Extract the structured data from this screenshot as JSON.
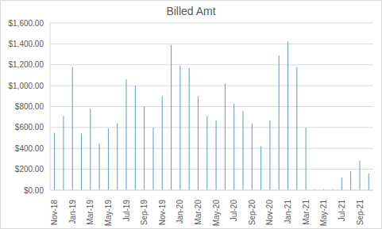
{
  "chart_data": {
    "type": "bar",
    "title": "Billed Amt",
    "categories": [
      "Nov-18",
      null,
      "Jan-19",
      null,
      "Mar-19",
      null,
      "May-19",
      null,
      "Jul-19",
      null,
      "Sep-19",
      null,
      "Nov-19",
      null,
      "Jan-20",
      null,
      "Mar-20",
      null,
      "May-20",
      null,
      "Jul-20",
      null,
      "Sep-20",
      null,
      "Nov-20",
      null,
      "Jan-21",
      null,
      "Mar-21",
      null,
      "May-21",
      null,
      "Jul-21",
      null,
      "Sep-21",
      null
    ],
    "values": [
      550,
      710,
      1180,
      540,
      780,
      450,
      590,
      640,
      1060,
      1000,
      800,
      600,
      900,
      1390,
      1190,
      1170,
      900,
      710,
      670,
      1020,
      830,
      760,
      640,
      420,
      670,
      1290,
      1420,
      1180,
      600,
      10,
      10,
      10,
      120,
      180,
      280,
      160
    ],
    "color": "#5b9bd5",
    "ylim": [
      0,
      1600
    ],
    "yticks": [
      {
        "value": 0,
        "label": "$0.00"
      },
      {
        "value": 200,
        "label": "$200.00"
      },
      {
        "value": 400,
        "label": "$400.00"
      },
      {
        "value": 600,
        "label": "$600.00"
      },
      {
        "value": 800,
        "label": "$800.00"
      },
      {
        "value": 1000,
        "label": "$1,000.00"
      },
      {
        "value": 1200,
        "label": "$1,200.00"
      },
      {
        "value": 1400,
        "label": "$1,400.00"
      },
      {
        "value": 1600,
        "label": "$1,600.00"
      }
    ],
    "grid": true
  }
}
